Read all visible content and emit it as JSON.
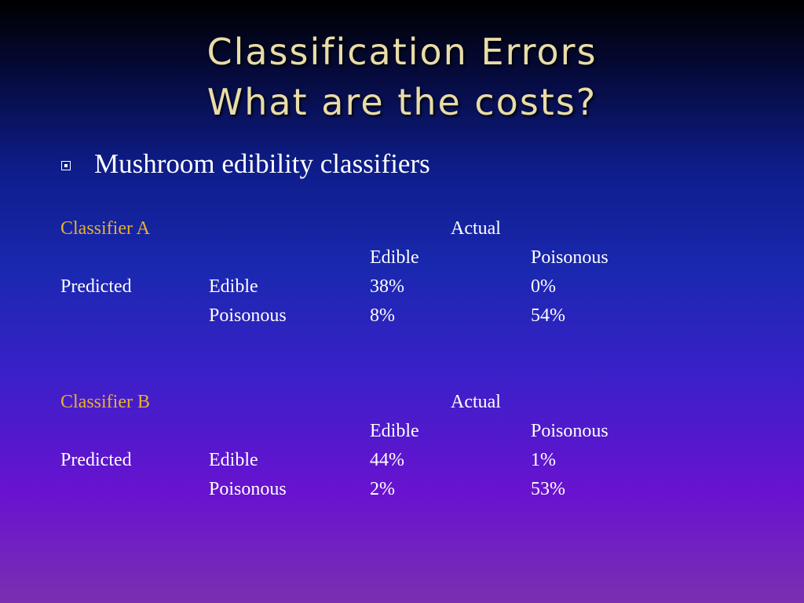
{
  "slide": {
    "title_line1": "Classification Errors",
    "title_line2": "What are the costs?",
    "bullet": "Mushroom edibility classifiers"
  },
  "classifiers": [
    {
      "name": "Classifier A",
      "actual_label": "Actual",
      "col_headers": [
        "Edible",
        "Poisonous"
      ],
      "predicted_label": "Predicted",
      "rows": [
        {
          "label": "Edible",
          "values": [
            "38%",
            "0%"
          ]
        },
        {
          "label": "Poisonous",
          "values": [
            "8%",
            "54%"
          ]
        }
      ]
    },
    {
      "name": "Classifier B",
      "actual_label": "Actual",
      "col_headers": [
        "Edible",
        "Poisonous"
      ],
      "predicted_label": "Predicted",
      "rows": [
        {
          "label": "Edible",
          "values": [
            "44%",
            "1%"
          ]
        },
        {
          "label": "Poisonous",
          "values": [
            "2%",
            "53%"
          ]
        }
      ]
    }
  ],
  "colors": {
    "title": "#e8dca8",
    "classifier_label": "#e8b030",
    "text": "#ffffff"
  }
}
